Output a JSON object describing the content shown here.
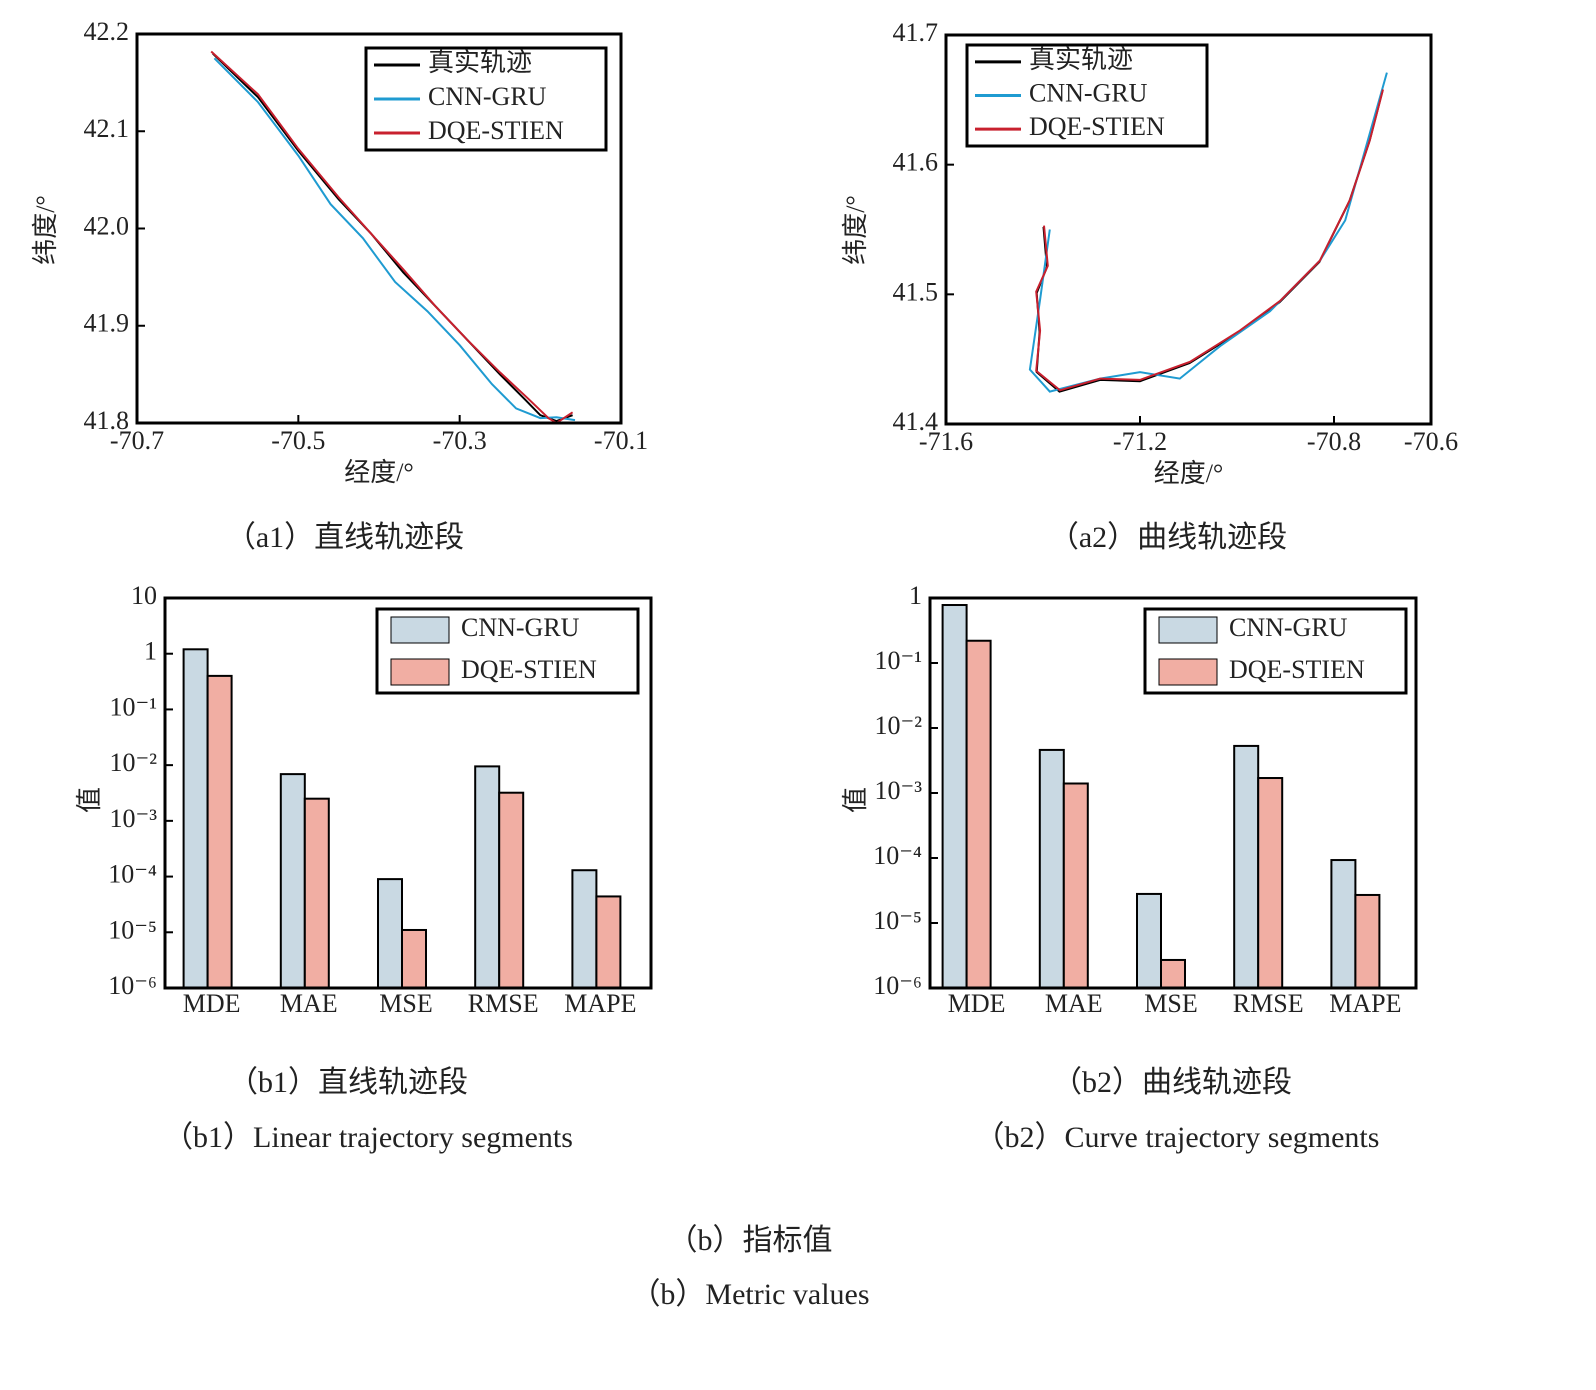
{
  "chart_data": [
    {
      "type": "line",
      "xlabel": "经度/°",
      "ylabel": "纬度/°",
      "xlim": [
        -70.7,
        -70.1
      ],
      "xticks": [
        -70.7,
        -70.5,
        -70.3,
        -70.1
      ],
      "ylim": [
        41.8,
        42.2
      ],
      "yticks": [
        41.8,
        41.9,
        {
          "value": 42,
          "label": "42.0"
        },
        42.1,
        42.2
      ],
      "legend": "upper right",
      "series": [
        {
          "name": "真实轨迹",
          "color": "#000000",
          "x": [
            -70.606,
            -70.55,
            -70.5,
            -70.45,
            -70.41,
            -70.37,
            -70.33,
            -70.29,
            -70.25,
            -70.22,
            -70.2,
            -70.18,
            -70.16
          ],
          "values": [
            42.18,
            42.135,
            42.08,
            42.03,
            41.995,
            41.955,
            41.92,
            41.885,
            41.85,
            41.825,
            41.808,
            41.802,
            41.808
          ]
        },
        {
          "name": "CNN-GRU",
          "color": "#1f9bd1",
          "x": [
            -70.604,
            -70.55,
            -70.5,
            -70.46,
            -70.42,
            -70.38,
            -70.34,
            -70.3,
            -70.26,
            -70.23,
            -70.2,
            -70.18,
            -70.157
          ],
          "values": [
            42.175,
            42.13,
            42.075,
            42.025,
            41.99,
            41.945,
            41.915,
            41.88,
            41.84,
            41.815,
            41.805,
            41.806,
            41.803
          ]
        },
        {
          "name": "DQE-STIEN",
          "color": "#c8202e",
          "x": [
            -70.608,
            -70.55,
            -70.5,
            -70.45,
            -70.41,
            -70.37,
            -70.33,
            -70.29,
            -70.25,
            -70.215,
            -70.19,
            -70.18,
            -70.16
          ],
          "values": [
            42.182,
            42.138,
            42.082,
            42.032,
            41.995,
            41.958,
            41.92,
            41.885,
            41.852,
            41.825,
            41.805,
            41.8,
            41.811
          ]
        }
      ]
    },
    {
      "type": "line",
      "xlabel": "经度/°",
      "ylabel": "纬度/°",
      "xlim": [
        -71.6,
        -70.6
      ],
      "xticks": [
        -71.6,
        -71.2,
        -70.8,
        -70.6
      ],
      "ylim": [
        41.4,
        41.7
      ],
      "yticks": [
        41.4,
        41.5,
        41.6,
        41.7
      ],
      "legend": "upper left",
      "series": [
        {
          "name": "真实轨迹",
          "color": "#000000",
          "x": [
            -71.399,
            -71.392,
            -71.413,
            -71.407,
            -71.413,
            -71.366,
            -71.282,
            -71.2,
            -71.098,
            -70.995,
            -70.912,
            -70.83,
            -70.768,
            -70.727,
            -70.7
          ],
          "values": [
            41.552,
            41.521,
            41.501,
            41.471,
            41.44,
            41.425,
            41.434,
            41.433,
            41.447,
            41.471,
            41.494,
            41.525,
            41.572,
            41.618,
            41.657
          ]
        },
        {
          "name": "CNN-GRU",
          "color": "#1f9bd1",
          "x": [
            -71.386,
            -71.406,
            -71.427,
            -71.386,
            -71.282,
            -71.2,
            -71.118,
            -71.035,
            -70.932,
            -70.829,
            -70.777,
            -70.736,
            -70.691
          ],
          "values": [
            41.55,
            41.496,
            41.442,
            41.425,
            41.435,
            41.44,
            41.435,
            41.46,
            41.487,
            41.526,
            41.557,
            41.611,
            41.671
          ]
        },
        {
          "name": "DQE-STIEN",
          "color": "#c8202e",
          "x": [
            -71.398,
            -71.39,
            -71.414,
            -71.406,
            -71.414,
            -71.365,
            -71.282,
            -71.2,
            -71.097,
            -70.994,
            -70.911,
            -70.829,
            -70.767,
            -70.726,
            -70.699
          ],
          "values": [
            41.553,
            41.522,
            41.502,
            41.472,
            41.441,
            41.426,
            41.435,
            41.434,
            41.448,
            41.472,
            41.495,
            41.526,
            41.573,
            41.619,
            41.658
          ]
        }
      ]
    },
    {
      "type": "bar",
      "ylabel": "值",
      "log_y": true,
      "ylim": [
        1e-06,
        10
      ],
      "yticks": [
        10,
        1,
        {
          "value": 0.1,
          "label": "10⁻¹"
        },
        {
          "value": 0.01,
          "label": "10⁻²"
        },
        {
          "value": 0.001,
          "label": "10⁻³"
        },
        {
          "value": 0.0001,
          "label": "10⁻⁴"
        },
        {
          "value": 1e-05,
          "label": "10⁻⁵"
        },
        {
          "value": 1e-06,
          "label": "10⁻⁶"
        }
      ],
      "legend": "upper right",
      "categories": [
        "MDE",
        "MAE",
        "MSE",
        "RMSE",
        "MAPE"
      ],
      "series": [
        {
          "name": "CNN-GRU",
          "color": "#c9d9e3",
          "values": [
            1.2,
            0.0069,
            9e-05,
            0.0095,
            0.00013
          ]
        },
        {
          "name": "DQE-STIEN",
          "color": "#f1aea3",
          "values": [
            0.4,
            0.0025,
            1.1e-05,
            0.0032,
            4.4e-05
          ]
        }
      ]
    },
    {
      "type": "bar",
      "ylabel": "值",
      "log_y": true,
      "ylim": [
        1e-06,
        1
      ],
      "yticks": [
        1,
        {
          "value": 0.1,
          "label": "10⁻¹"
        },
        {
          "value": 0.01,
          "label": "10⁻²"
        },
        {
          "value": 0.001,
          "label": "10⁻³"
        },
        {
          "value": 0.0001,
          "label": "10⁻⁴"
        },
        {
          "value": 1e-05,
          "label": "10⁻⁵"
        },
        {
          "value": 1e-06,
          "label": "10⁻⁶"
        }
      ],
      "legend": "upper right",
      "categories": [
        "MDE",
        "MAE",
        "MSE",
        "RMSE",
        "MAPE"
      ],
      "series": [
        {
          "name": "CNN-GRU",
          "color": "#c9d9e3",
          "values": [
            0.78,
            0.0046,
            2.8e-05,
            0.0053,
            9.3e-05
          ]
        },
        {
          "name": "DQE-STIEN",
          "color": "#f1aea3",
          "values": [
            0.22,
            0.0014,
            2.7e-06,
            0.0017,
            2.7e-05
          ]
        }
      ]
    }
  ],
  "captions": [
    "（a1）直线轨迹段",
    "（a2）曲线轨迹段",
    "（b1）直线轨迹段",
    "（b1）Linear trajectory segments",
    "（b2）曲线轨迹段",
    "（b2）Curve trajectory segments",
    "（b）指标值",
    "（b）Metric values"
  ]
}
